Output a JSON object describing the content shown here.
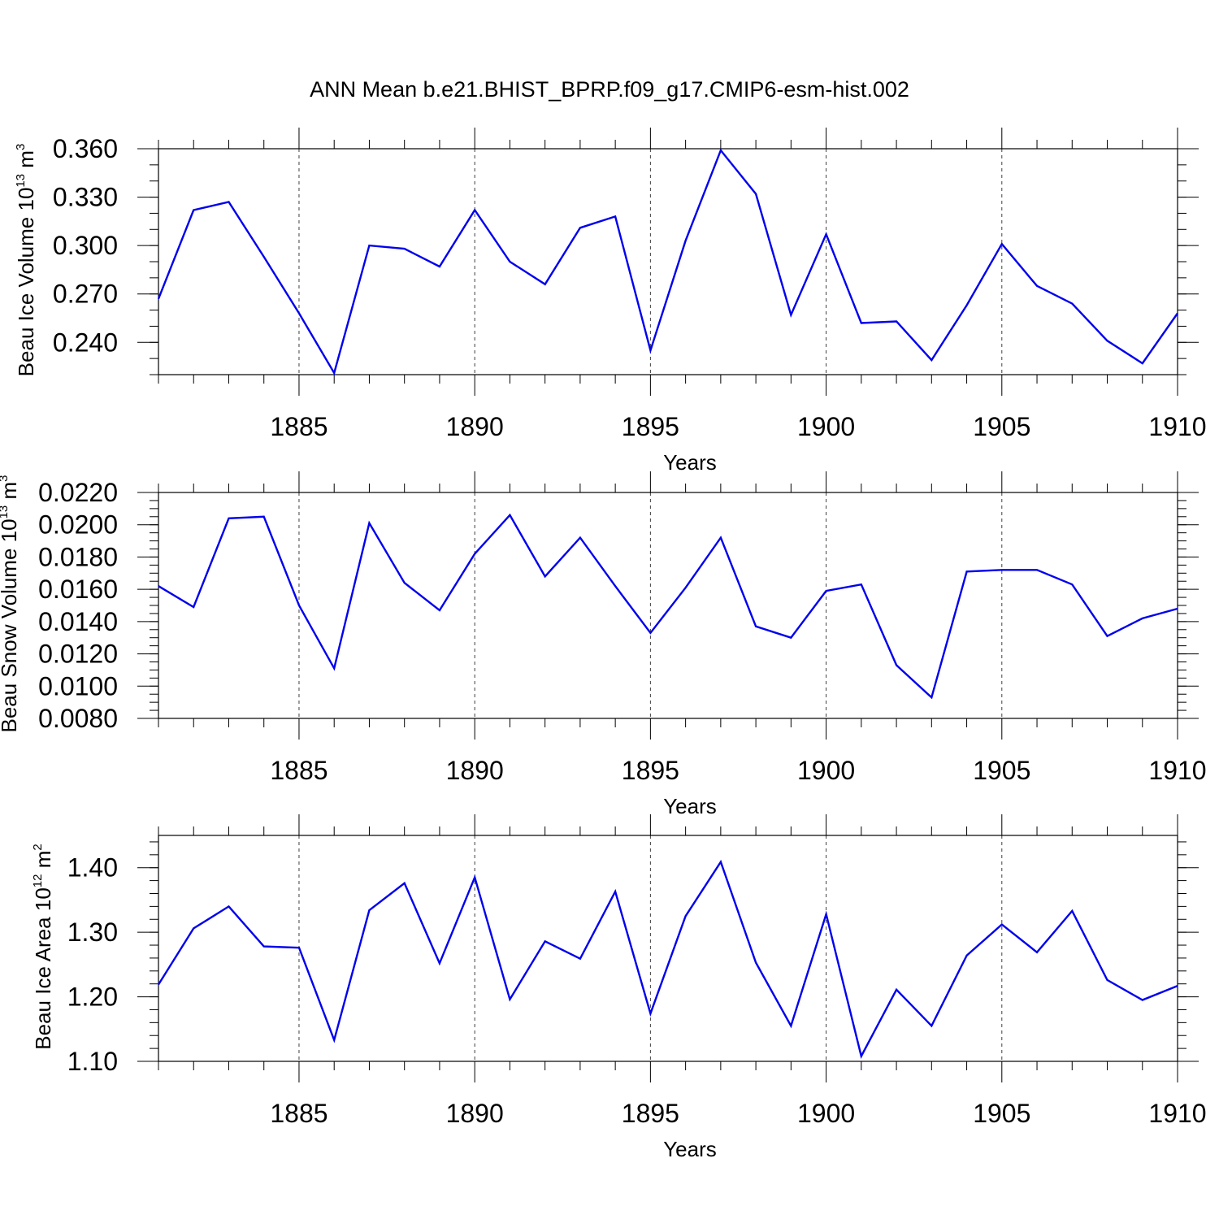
{
  "title": "ANN Mean b.e21.BHIST_BPRP.f09_g17.CMIP6-esm-hist.002",
  "colors": {
    "series": "#0000ee",
    "axis": "#000000"
  },
  "chart_data": [
    {
      "type": "line",
      "xlabel": "Years",
      "ylabel": {
        "text": "Beau Ice Volume 10",
        "exp": "13",
        "unit": " m",
        "unit_exp": "3"
      },
      "xlim": [
        1881,
        1910
      ],
      "ylim": [
        0.22,
        0.36
      ],
      "grid": "vertical-dashed",
      "x_ticks": [
        1885,
        1890,
        1895,
        1900,
        1905,
        1910
      ],
      "x_tick_labels": [
        "1885",
        "1890",
        "1895",
        "1900",
        "1905",
        "1910"
      ],
      "y_ticks": [
        0.24,
        0.27,
        0.3,
        0.33,
        0.36
      ],
      "y_tick_labels": [
        "0.240",
        "0.270",
        "0.300",
        "0.330",
        "0.360"
      ],
      "y_minor_step": 0.01,
      "x": [
        1881,
        1882,
        1883,
        1884,
        1885,
        1886,
        1887,
        1888,
        1889,
        1890,
        1891,
        1892,
        1893,
        1894,
        1895,
        1896,
        1897,
        1898,
        1899,
        1900,
        1901,
        1902,
        1903,
        1904,
        1905,
        1906,
        1907,
        1908,
        1909,
        1910
      ],
      "series": [
        {
          "name": "Beau Ice Volume",
          "values": [
            0.267,
            0.322,
            0.327,
            0.293,
            0.258,
            0.221,
            0.3,
            0.298,
            0.287,
            0.322,
            0.29,
            0.276,
            0.311,
            0.318,
            0.235,
            0.303,
            0.359,
            0.332,
            0.257,
            0.307,
            0.252,
            0.253,
            0.229,
            0.263,
            0.301,
            0.275,
            0.264,
            0.241,
            0.227,
            0.258
          ]
        }
      ]
    },
    {
      "type": "line",
      "xlabel": "Years",
      "ylabel": {
        "text": "Beau Snow Volume 10",
        "exp": "13",
        "unit": " m",
        "unit_exp": "3"
      },
      "xlim": [
        1881,
        1910
      ],
      "ylim": [
        0.008,
        0.022
      ],
      "grid": "vertical-dashed",
      "x_ticks": [
        1885,
        1890,
        1895,
        1900,
        1905,
        1910
      ],
      "x_tick_labels": [
        "1885",
        "1890",
        "1895",
        "1900",
        "1905",
        "1910"
      ],
      "y_ticks": [
        0.008,
        0.01,
        0.012,
        0.014,
        0.016,
        0.018,
        0.02,
        0.022
      ],
      "y_tick_labels": [
        "0.0080",
        "0.0100",
        "0.0120",
        "0.0140",
        "0.0160",
        "0.0180",
        "0.0200",
        "0.0220"
      ],
      "y_minor_step": 0.0005,
      "x": [
        1881,
        1882,
        1883,
        1884,
        1885,
        1886,
        1887,
        1888,
        1889,
        1890,
        1891,
        1892,
        1893,
        1894,
        1895,
        1896,
        1897,
        1898,
        1899,
        1900,
        1901,
        1902,
        1903,
        1904,
        1905,
        1906,
        1907,
        1908,
        1909,
        1910
      ],
      "series": [
        {
          "name": "Beau Snow Volume",
          "values": [
            0.0162,
            0.0149,
            0.0204,
            0.0205,
            0.015,
            0.0111,
            0.0201,
            0.0164,
            0.0147,
            0.0182,
            0.0206,
            0.0168,
            0.0192,
            0.0162,
            0.0133,
            0.0161,
            0.0192,
            0.0137,
            0.013,
            0.0159,
            0.0163,
            0.0113,
            0.0093,
            0.0171,
            0.0172,
            0.0172,
            0.0163,
            0.0131,
            0.0142,
            0.0148
          ]
        }
      ]
    },
    {
      "type": "line",
      "xlabel": "Years",
      "ylabel": {
        "text": "Beau Ice Area 10",
        "exp": "12",
        "unit": " m",
        "unit_exp": "2"
      },
      "xlim": [
        1881,
        1910
      ],
      "ylim": [
        1.1,
        1.45
      ],
      "grid": "vertical-dashed",
      "x_ticks": [
        1885,
        1890,
        1895,
        1900,
        1905,
        1910
      ],
      "x_tick_labels": [
        "1885",
        "1890",
        "1895",
        "1900",
        "1905",
        "1910"
      ],
      "y_ticks": [
        1.1,
        1.2,
        1.3,
        1.4
      ],
      "y_tick_labels": [
        "1.10",
        "1.20",
        "1.30",
        "1.40"
      ],
      "y_minor_step": 0.02,
      "x": [
        1881,
        1882,
        1883,
        1884,
        1885,
        1886,
        1887,
        1888,
        1889,
        1890,
        1891,
        1892,
        1893,
        1894,
        1895,
        1896,
        1897,
        1898,
        1899,
        1900,
        1901,
        1902,
        1903,
        1904,
        1905,
        1906,
        1907,
        1908,
        1909,
        1910
      ],
      "series": [
        {
          "name": "Beau Ice Area",
          "values": [
            1.219,
            1.306,
            1.34,
            1.278,
            1.276,
            1.133,
            1.334,
            1.376,
            1.252,
            1.385,
            1.196,
            1.286,
            1.259,
            1.363,
            1.174,
            1.325,
            1.409,
            1.253,
            1.155,
            1.328,
            1.108,
            1.211,
            1.155,
            1.264,
            1.312,
            1.269,
            1.333,
            1.226,
            1.195,
            1.217
          ]
        }
      ]
    }
  ]
}
